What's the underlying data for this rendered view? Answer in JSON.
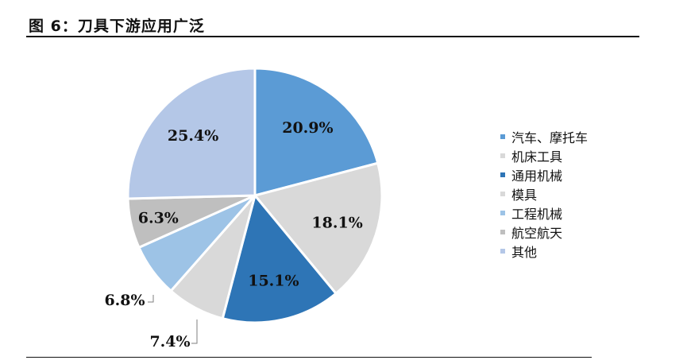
{
  "page": {
    "title": "图 6：刀具下游应用广泛"
  },
  "chart_data": {
    "type": "pie",
    "title": "",
    "legend_position": "right",
    "slices": [
      {
        "name": "汽车、摩托车",
        "value": 20.9,
        "label": "20.9%",
        "color": "#5b9bd5"
      },
      {
        "name": "机床工具",
        "value": 18.1,
        "label": "18.1%",
        "color": "#d9d9d9"
      },
      {
        "name": "通用机械",
        "value": 15.1,
        "label": "15.1%",
        "color": "#2e75b6"
      },
      {
        "name": "模具",
        "value": 7.4,
        "label": "7.4%",
        "color": "#d9d9d9"
      },
      {
        "name": "工程机械",
        "value": 6.8,
        "label": "6.8%",
        "color": "#9dc3e6"
      },
      {
        "name": "航空航天",
        "value": 6.3,
        "label": "6.3%",
        "color": "#bfbfbf"
      },
      {
        "name": "其他",
        "value": 25.4,
        "label": "25.4%",
        "color": "#b4c7e7"
      }
    ]
  }
}
